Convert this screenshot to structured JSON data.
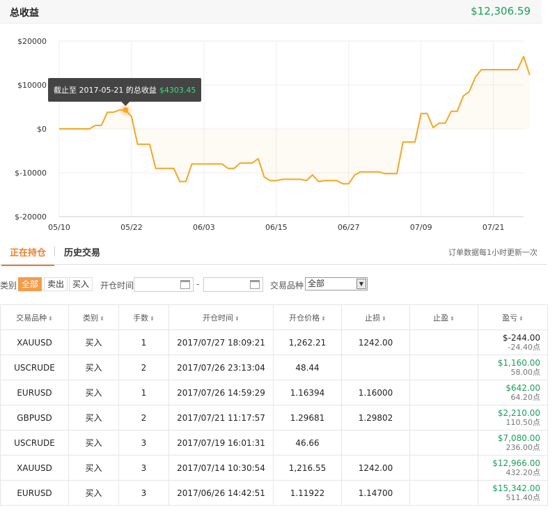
{
  "header": {
    "title": "总收益",
    "total": "$12,306.59"
  },
  "chart_data": {
    "type": "area",
    "yticks": [
      "$20000",
      "$10000",
      "$0",
      "$-10000",
      "$-20000"
    ],
    "ytick_values": [
      20000,
      10000,
      0,
      -10000,
      -20000
    ],
    "ylim": [
      -20000,
      20000
    ],
    "xticks": [
      "05/10",
      "05/22",
      "06/03",
      "06/15",
      "06/27",
      "07/09",
      "07/21"
    ],
    "xlim": [
      "2017-05-10",
      "2017-07-26"
    ],
    "line_color": "#f5a623",
    "tooltip": {
      "prefix": "截止至 2017-05-21 的总收益",
      "value": "$4303.45",
      "date": "2017-05-21"
    },
    "series": [
      {
        "x": [
          "2017-05-10",
          "2017-05-13",
          "2017-05-14",
          "2017-05-15",
          "2017-05-16",
          "2017-05-17",
          "2017-05-18",
          "2017-05-19",
          "2017-05-20",
          "2017-05-21",
          "2017-05-22",
          "2017-05-23",
          "2017-05-24",
          "2017-05-25",
          "2017-05-26",
          "2017-05-27",
          "2017-05-28",
          "2017-05-29",
          "2017-05-30",
          "2017-05-31",
          "2017-06-01",
          "2017-06-02",
          "2017-06-04",
          "2017-06-05",
          "2017-06-06",
          "2017-06-07",
          "2017-06-08",
          "2017-06-09",
          "2017-06-11",
          "2017-06-12",
          "2017-06-13",
          "2017-06-14",
          "2017-06-15",
          "2017-06-16",
          "2017-06-17",
          "2017-06-19",
          "2017-06-20",
          "2017-06-21",
          "2017-06-22",
          "2017-06-23",
          "2017-06-25",
          "2017-06-26",
          "2017-06-27",
          "2017-06-28",
          "2017-06-29",
          "2017-07-02",
          "2017-07-03",
          "2017-07-05",
          "2017-07-06",
          "2017-07-08",
          "2017-07-09",
          "2017-07-10",
          "2017-07-11",
          "2017-07-12",
          "2017-07-13",
          "2017-07-14",
          "2017-07-15",
          "2017-07-16",
          "2017-07-17",
          "2017-07-18",
          "2017-07-19",
          "2017-07-20",
          "2017-07-25",
          "2017-07-26",
          "2017-07-27"
        ],
        "y": [
          0,
          0,
          0,
          0,
          800,
          800,
          3800,
          3800,
          4300,
          4300,
          2800,
          -3500,
          -3500,
          -3500,
          -9000,
          -9000,
          -9000,
          -9000,
          -12000,
          -12000,
          -8000,
          -8000,
          -8000,
          -8000,
          -8000,
          -9000,
          -9000,
          -7800,
          -7800,
          -6800,
          -11000,
          -11800,
          -11800,
          -11500,
          -11500,
          -11500,
          -11800,
          -10500,
          -12000,
          -11800,
          -11800,
          -12500,
          -12500,
          -10500,
          -9800,
          -9800,
          -10200,
          -10200,
          -3000,
          -3000,
          3500,
          3500,
          300,
          1300,
          1300,
          4000,
          4000,
          7500,
          8500,
          11800,
          13500,
          13500,
          13500,
          16500,
          12300
        ]
      }
    ]
  },
  "tabs": {
    "open": "正在持仓",
    "history": "历史交易",
    "note": "订单数据每1小时更新一次"
  },
  "filters": {
    "category_label": "类别",
    "category_options": [
      "全部",
      "卖出",
      "买入"
    ],
    "open_time_label": "开仓时间",
    "date_sep": "-",
    "symbol_label": "交易品种",
    "symbol_selected": "全部"
  },
  "table": {
    "headers": [
      "交易品种",
      "类别",
      "手数",
      "开仓时间",
      "开仓价格",
      "止损",
      "止盈",
      "盈亏"
    ],
    "rows": [
      {
        "symbol": "XAUUSD",
        "type": "买入",
        "lots": "1",
        "time": "2017/07/27 18:09:21",
        "price": "1,262.21",
        "sl": "1242.00",
        "tp": "",
        "pnl": "$-244.00",
        "pts": "-24.40点",
        "neg": true
      },
      {
        "symbol": "USCRUDE",
        "type": "买入",
        "lots": "2",
        "time": "2017/07/26 23:13:04",
        "price": "48.44",
        "sl": "",
        "tp": "",
        "pnl": "$1,160.00",
        "pts": "58.00点",
        "neg": false
      },
      {
        "symbol": "EURUSD",
        "type": "买入",
        "lots": "1",
        "time": "2017/07/26 14:59:29",
        "price": "1.16394",
        "sl": "1.16000",
        "tp": "",
        "pnl": "$642.00",
        "pts": "64.20点",
        "neg": false
      },
      {
        "symbol": "GBPUSD",
        "type": "买入",
        "lots": "2",
        "time": "2017/07/21 11:17:57",
        "price": "1.29681",
        "sl": "1.29802",
        "tp": "",
        "pnl": "$2,210.00",
        "pts": "110.50点",
        "neg": false
      },
      {
        "symbol": "USCRUDE",
        "type": "买入",
        "lots": "3",
        "time": "2017/07/19 16:01:31",
        "price": "46.66",
        "sl": "",
        "tp": "",
        "pnl": "$7,080.00",
        "pts": "236.00点",
        "neg": false
      },
      {
        "symbol": "XAUUSD",
        "type": "买入",
        "lots": "3",
        "time": "2017/07/14 10:30:54",
        "price": "1,216.55",
        "sl": "1242.00",
        "tp": "",
        "pnl": "$12,966.00",
        "pts": "432.20点",
        "neg": false
      },
      {
        "symbol": "EURUSD",
        "type": "买入",
        "lots": "3",
        "time": "2017/06/26 14:42:51",
        "price": "1.11922",
        "sl": "1.14700",
        "tp": "",
        "pnl": "$15,342.00",
        "pts": "511.40点",
        "neg": false
      }
    ]
  }
}
